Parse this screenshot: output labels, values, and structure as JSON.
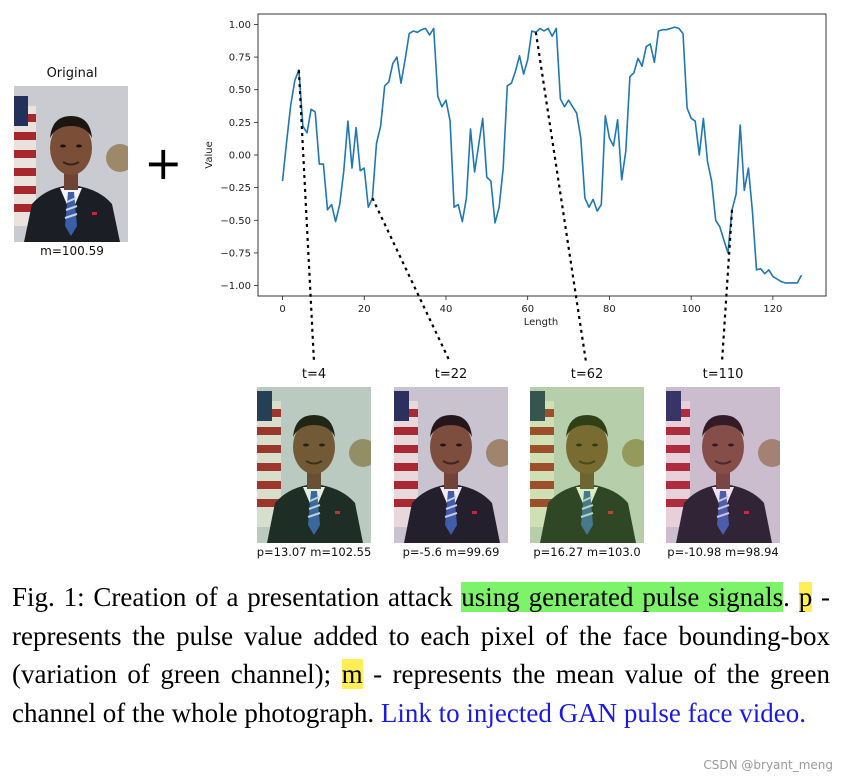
{
  "original": {
    "title": "Original",
    "mean_label": "m=100.59"
  },
  "plus_symbol": "+",
  "chart_data": {
    "type": "line",
    "xlabel": "Length",
    "ylabel": "Value",
    "xlim": [
      -6,
      133
    ],
    "ylim": [
      -1.08,
      1.08
    ],
    "x_ticks": [
      0,
      20,
      40,
      60,
      80,
      100,
      120
    ],
    "y_ticks": [
      -1.0,
      -0.75,
      -0.5,
      -0.25,
      0.0,
      0.25,
      0.5,
      0.75,
      1.0
    ],
    "x_tick_labels": [
      "0",
      "20",
      "40",
      "60",
      "80",
      "100",
      "120"
    ],
    "y_tick_labels": [
      "−1.00",
      "−0.75",
      "−0.50",
      "−0.25",
      "0.00",
      "0.25",
      "0.50",
      "0.75",
      "1.00"
    ],
    "series": [
      {
        "color": "#1f77b4",
        "x": [
          0,
          1,
          2,
          3,
          4,
          5,
          6,
          7,
          8,
          9,
          10,
          11,
          12,
          13,
          14,
          15,
          16,
          17,
          18,
          19,
          20,
          21,
          22,
          23,
          24,
          25,
          26,
          27,
          28,
          29,
          30,
          31,
          32,
          33,
          34,
          35,
          36,
          37,
          38,
          39,
          40,
          41,
          42,
          43,
          44,
          45,
          46,
          47,
          48,
          49,
          50,
          51,
          52,
          53,
          54,
          55,
          56,
          57,
          58,
          59,
          60,
          61,
          62,
          63,
          64,
          65,
          66,
          67,
          68,
          69,
          70,
          71,
          72,
          73,
          74,
          75,
          76,
          77,
          78,
          79,
          80,
          81,
          82,
          83,
          84,
          85,
          86,
          87,
          88,
          89,
          90,
          91,
          92,
          93,
          94,
          95,
          96,
          97,
          98,
          99,
          100,
          101,
          102,
          103,
          104,
          105,
          106,
          107,
          108,
          109,
          110,
          111,
          112,
          113,
          114,
          115,
          116,
          117,
          118,
          119,
          120,
          121,
          122,
          123,
          124,
          125,
          126,
          127
        ],
        "y": [
          -0.2,
          0.1,
          0.38,
          0.57,
          0.65,
          0.22,
          0.17,
          0.35,
          0.33,
          -0.07,
          -0.07,
          -0.42,
          -0.38,
          -0.51,
          -0.38,
          -0.12,
          0.26,
          -0.1,
          0.21,
          -0.12,
          -0.1,
          -0.4,
          -0.33,
          0.09,
          0.22,
          0.53,
          0.56,
          0.7,
          0.75,
          0.55,
          0.73,
          0.93,
          0.95,
          0.94,
          0.96,
          0.97,
          0.92,
          0.97,
          0.45,
          0.37,
          0.42,
          0.26,
          -0.4,
          -0.38,
          -0.51,
          -0.33,
          0.2,
          -0.13,
          0.08,
          0.28,
          -0.17,
          -0.2,
          -0.52,
          -0.4,
          -0.1,
          0.53,
          0.55,
          0.64,
          0.76,
          0.62,
          0.73,
          0.95,
          0.94,
          0.97,
          0.95,
          0.97,
          0.91,
          0.97,
          0.43,
          0.37,
          0.42,
          0.37,
          0.32,
          0.13,
          -0.33,
          -0.4,
          -0.34,
          -0.43,
          -0.38,
          0.3,
          0.13,
          0.07,
          0.27,
          -0.19,
          0.03,
          0.6,
          0.63,
          0.74,
          0.68,
          0.83,
          0.85,
          0.71,
          0.95,
          0.96,
          0.96,
          0.97,
          0.98,
          0.97,
          0.93,
          0.36,
          0.28,
          0.26,
          0.0,
          0.28,
          -0.05,
          -0.2,
          -0.5,
          -0.55,
          -0.65,
          -0.75,
          -0.42,
          -0.3,
          0.23,
          -0.27,
          -0.1,
          -0.43,
          -0.88,
          -0.87,
          -0.91,
          -0.88,
          -0.93,
          -0.95,
          -0.97,
          -0.98,
          -0.98,
          -0.98,
          -0.98,
          -0.92
        ]
      }
    ]
  },
  "frames": [
    {
      "title": "t=4",
      "label": "p=13.07 m=102.55",
      "t": 4,
      "tint": "rgba(60,200,60,0.10)"
    },
    {
      "title": "t=22",
      "label": "p=-5.6 m=99.69",
      "t": 22,
      "tint": "rgba(200,60,200,0.05)"
    },
    {
      "title": "t=62",
      "label": "p=16.27 m=103.0",
      "t": 62,
      "tint": "rgba(120,220,40,0.22)"
    },
    {
      "title": "t=110",
      "label": "p=-10.98 m=98.94",
      "t": 110,
      "tint": "rgba(220,80,200,0.12)"
    }
  ],
  "caption": {
    "prefix": "Fig. 1: Creation of a presentation attack ",
    "highlight1": "using generated pulse signals",
    "after1": ". ",
    "p_letter": "p",
    "middle": " - represents the pulse value added to each pixel of the face bounding-box (variation of green channel); ",
    "m_letter": "m",
    "suffix": " - represents the mean value of the green channel of the whole photograph. ",
    "link_text": "Link to injected GAN pulse face video."
  },
  "watermark": "CSDN @bryant_meng"
}
